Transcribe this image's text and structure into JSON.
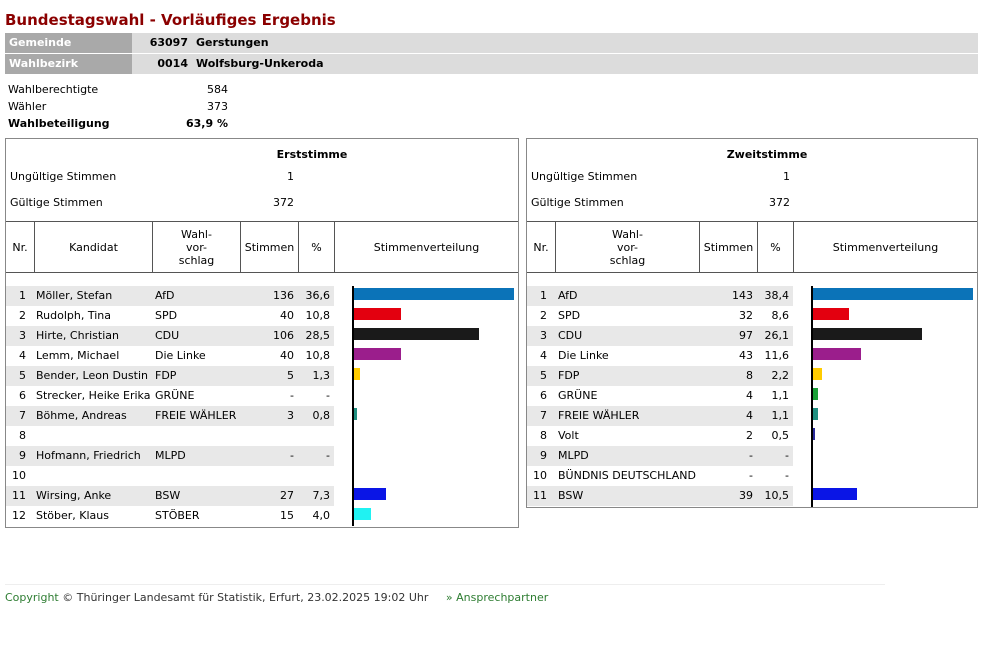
{
  "title": "Bundestagswahl - Vorläufiges Ergebnis",
  "header": {
    "gemeinde_label": "Gemeinde",
    "gemeinde_nr": "63097",
    "gemeinde_name": "Gerstungen",
    "wahlbezirk_label": "Wahlbezirk",
    "wahlbezirk_nr": "0014",
    "wahlbezirk_name": "Wolfsburg-Unkeroda"
  },
  "stats": {
    "berechtigte_label": "Wahlberechtigte",
    "berechtigte": "584",
    "waehler_label": "Wähler",
    "waehler": "373",
    "beteiligung_label": "Wahlbeteiligung",
    "beteiligung": "63,9 %"
  },
  "erst": {
    "title": "Erststimme",
    "ungueltig_label": "Ungültige Stimmen",
    "ungueltig": "1",
    "gueltig_label": "Gültige Stimmen",
    "gueltig": "372",
    "headers": {
      "nr": "Nr.",
      "kandidat": "Kandidat",
      "wahlvorschlag": "Wahl-\nvor-\nschlag",
      "stimmen": "Stimmen",
      "pct": "%",
      "verteilung": "Stimmenverteilung"
    },
    "rows": [
      {
        "nr": "1",
        "name": "Möller, Stefan",
        "party": "AfD",
        "votes": "136",
        "pct": "36,6",
        "value": 36.6,
        "color": "#0b73b8"
      },
      {
        "nr": "2",
        "name": "Rudolph, Tina",
        "party": "SPD",
        "votes": "40",
        "pct": "10,8",
        "value": 10.8,
        "color": "#e3000f"
      },
      {
        "nr": "3",
        "name": "Hirte, Christian",
        "party": "CDU",
        "votes": "106",
        "pct": "28,5",
        "value": 28.5,
        "color": "#1a1a1a"
      },
      {
        "nr": "4",
        "name": "Lemm, Michael",
        "party": "Die Linke",
        "votes": "40",
        "pct": "10,8",
        "value": 10.8,
        "color": "#9b1e8c"
      },
      {
        "nr": "5",
        "name": "Bender, Leon Dustin",
        "party": "FDP",
        "votes": "5",
        "pct": "1,3",
        "value": 1.3,
        "color": "#ffcc00"
      },
      {
        "nr": "6",
        "name": "Strecker, Heike Erika",
        "party": "GRÜNE",
        "votes": "-",
        "pct": "-",
        "value": 0,
        "color": "#1aa037"
      },
      {
        "nr": "7",
        "name": "Böhme, Andreas",
        "party": "FREIE WÄHLER",
        "votes": "3",
        "pct": "0,8",
        "value": 0.8,
        "color": "#1f8f80"
      },
      {
        "nr": "8",
        "name": "",
        "party": "",
        "votes": "",
        "pct": "",
        "value": 0,
        "color": "#ffffff"
      },
      {
        "nr": "9",
        "name": "Hofmann, Friedrich",
        "party": "MLPD",
        "votes": "-",
        "pct": "-",
        "value": 0,
        "color": "#ffffff"
      },
      {
        "nr": "10",
        "name": "",
        "party": "",
        "votes": "",
        "pct": "",
        "value": 0,
        "color": "#ffffff"
      },
      {
        "nr": "11",
        "name": "Wirsing, Anke",
        "party": "BSW",
        "votes": "27",
        "pct": "7,3",
        "value": 7.3,
        "color": "#0a15e6"
      },
      {
        "nr": "12",
        "name": "Stöber, Klaus",
        "party": "STÖBER",
        "votes": "15",
        "pct": "4,0",
        "value": 4.0,
        "color": "#20f2f2"
      }
    ]
  },
  "zweit": {
    "title": "Zweitstimme",
    "ungueltig_label": "Ungültige Stimmen",
    "ungueltig": "1",
    "gueltig_label": "Gültige Stimmen",
    "gueltig": "372",
    "headers": {
      "nr": "Nr.",
      "wahlvorschlag": "Wahl-\nvor-\nschlag",
      "stimmen": "Stimmen",
      "pct": "%",
      "verteilung": "Stimmenverteilung"
    },
    "rows": [
      {
        "nr": "1",
        "party": "AfD",
        "votes": "143",
        "pct": "38,4",
        "value": 38.4,
        "color": "#0b73b8"
      },
      {
        "nr": "2",
        "party": "SPD",
        "votes": "32",
        "pct": "8,6",
        "value": 8.6,
        "color": "#e3000f"
      },
      {
        "nr": "3",
        "party": "CDU",
        "votes": "97",
        "pct": "26,1",
        "value": 26.1,
        "color": "#1a1a1a"
      },
      {
        "nr": "4",
        "party": "Die Linke",
        "votes": "43",
        "pct": "11,6",
        "value": 11.6,
        "color": "#9b1e8c"
      },
      {
        "nr": "5",
        "party": "FDP",
        "votes": "8",
        "pct": "2,2",
        "value": 2.2,
        "color": "#ffcc00"
      },
      {
        "nr": "6",
        "party": "GRÜNE",
        "votes": "4",
        "pct": "1,1",
        "value": 1.1,
        "color": "#1aa037"
      },
      {
        "nr": "7",
        "party": "FREIE WÄHLER",
        "votes": "4",
        "pct": "1,1",
        "value": 1.1,
        "color": "#1f8f80"
      },
      {
        "nr": "8",
        "party": "Volt",
        "votes": "2",
        "pct": "0,5",
        "value": 0.5,
        "color": "#2a2a9a"
      },
      {
        "nr": "9",
        "party": "MLPD",
        "votes": "-",
        "pct": "-",
        "value": 0,
        "color": "#ffffff"
      },
      {
        "nr": "10",
        "party": "BÜNDNIS DEUTSCHLAND",
        "votes": "-",
        "pct": "-",
        "value": 0,
        "color": "#ffffff"
      },
      {
        "nr": "11",
        "party": "BSW",
        "votes": "39",
        "pct": "10,5",
        "value": 10.5,
        "color": "#0a15e6"
      }
    ]
  },
  "footer": {
    "copyright_link": "Copyright",
    "copyright_text": "© Thüringer Landesamt für Statistik, Erfurt, 23.02.2025 19:02 Uhr",
    "contact_link": "» Ansprechpartner"
  }
}
